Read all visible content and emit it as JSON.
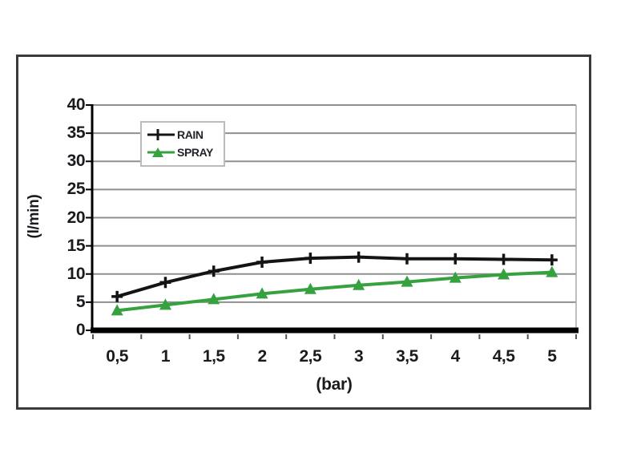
{
  "chart_data": {
    "type": "line",
    "x": [
      0.5,
      1,
      1.5,
      2,
      2.5,
      3,
      3.5,
      4,
      4.5,
      5
    ],
    "xticklabels": [
      "0,5",
      "1",
      "1,5",
      "2",
      "2,5",
      "3",
      "3,5",
      "4",
      "4,5",
      "5"
    ],
    "xlabel": "(bar)",
    "ylabel": "(l/min)",
    "ylim": [
      0,
      40
    ],
    "yticks": [
      0,
      5,
      10,
      15,
      20,
      25,
      30,
      35,
      40
    ],
    "grid": true,
    "legend_position": "top-left",
    "series": [
      {
        "name": "RAIN",
        "color": "#141414",
        "marker": "plus",
        "values": [
          6,
          8.5,
          10.5,
          12.1,
          12.8,
          13,
          12.7,
          12.7,
          12.6,
          12.5
        ]
      },
      {
        "name": "SPRAY",
        "color": "#35a23f",
        "marker": "triangle-up",
        "values": [
          3.5,
          4.5,
          5.5,
          6.5,
          7.3,
          8,
          8.6,
          9.3,
          9.9,
          10.3
        ]
      }
    ]
  },
  "colors": {
    "grid": "#8f8f8f",
    "grid_edge": "#aaaaaa",
    "axis": "#000000",
    "tick": "#555555",
    "text": "#1b1b1f",
    "legend_border": "#bcbcbc",
    "background": "#ffffff"
  }
}
